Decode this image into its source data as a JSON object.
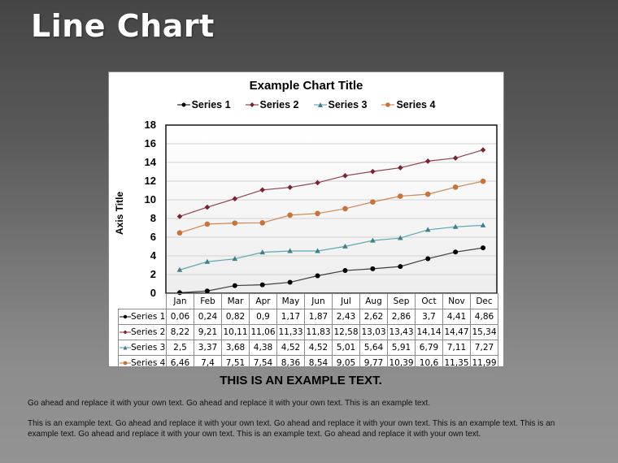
{
  "slide": {
    "title": "Line Chart",
    "heading": "THIS IS AN EXAMPLE TEXT.",
    "paragraphs": [
      "Go ahead and replace it with your own text. Go ahead and replace it with your own text. This is an example text.",
      "This is an example text. Go ahead and replace it with your own text. Go ahead and replace it with your own text. This is an example text. This is an example text. Go ahead and replace it with your own text. This is an example text. Go ahead and replace it with your own text."
    ]
  },
  "colors": {
    "series1": "#000000",
    "series2": "#7b2233",
    "series3": "#4a9aa5",
    "series4": "#c8733a"
  },
  "chart_data": {
    "type": "line",
    "title": "Example Chart Title",
    "xlabel": "",
    "ylabel": "Axis Title",
    "ylim": [
      0,
      18
    ],
    "yticks": [
      0,
      2,
      4,
      6,
      8,
      10,
      12,
      14,
      16,
      18
    ],
    "grid": true,
    "legend_position": "top",
    "categories": [
      "Jan",
      "Feb",
      "Mar",
      "Apr",
      "May",
      "Jun",
      "Jul",
      "Aug",
      "Sep",
      "Oct",
      "Nov",
      "Dec"
    ],
    "series": [
      {
        "name": "Series 1",
        "marker": "circle",
        "values": [
          0.06,
          0.24,
          0.82,
          0.9,
          1.17,
          1.87,
          2.43,
          2.62,
          2.86,
          3.7,
          4.41,
          4.86
        ],
        "labels": [
          "0,06",
          "0,24",
          "0,82",
          "0,9",
          "1,17",
          "1,87",
          "2,43",
          "2,62",
          "2,86",
          "3,7",
          "4,41",
          "4,86"
        ]
      },
      {
        "name": "Series 2",
        "marker": "diamond",
        "values": [
          8.22,
          9.21,
          10.11,
          11.06,
          11.33,
          11.83,
          12.58,
          13.03,
          13.43,
          14.14,
          14.47,
          15.34
        ],
        "labels": [
          "8,22",
          "9,21",
          "10,11",
          "11,06",
          "11,33",
          "11,83",
          "12,58",
          "13,03",
          "13,43",
          "14,14",
          "14,47",
          "15,34"
        ]
      },
      {
        "name": "Series 3",
        "marker": "triangle",
        "values": [
          2.5,
          3.37,
          3.68,
          4.38,
          4.52,
          4.52,
          5.01,
          5.64,
          5.91,
          6.79,
          7.11,
          7.27
        ],
        "labels": [
          "2,5",
          "3,37",
          "3,68",
          "4,38",
          "4,52",
          "4,52",
          "5,01",
          "5,64",
          "5,91",
          "6,79",
          "7,11",
          "7,27"
        ]
      },
      {
        "name": "Series 4",
        "marker": "circle",
        "values": [
          6.46,
          7.4,
          7.51,
          7.54,
          8.36,
          8.54,
          9.05,
          9.77,
          10.39,
          10.6,
          11.35,
          11.99
        ],
        "labels": [
          "6,46",
          "7,4",
          "7,51",
          "7,54",
          "8,36",
          "8,54",
          "9,05",
          "9,77",
          "10,39",
          "10,6",
          "11,35",
          "11,99"
        ]
      }
    ]
  }
}
